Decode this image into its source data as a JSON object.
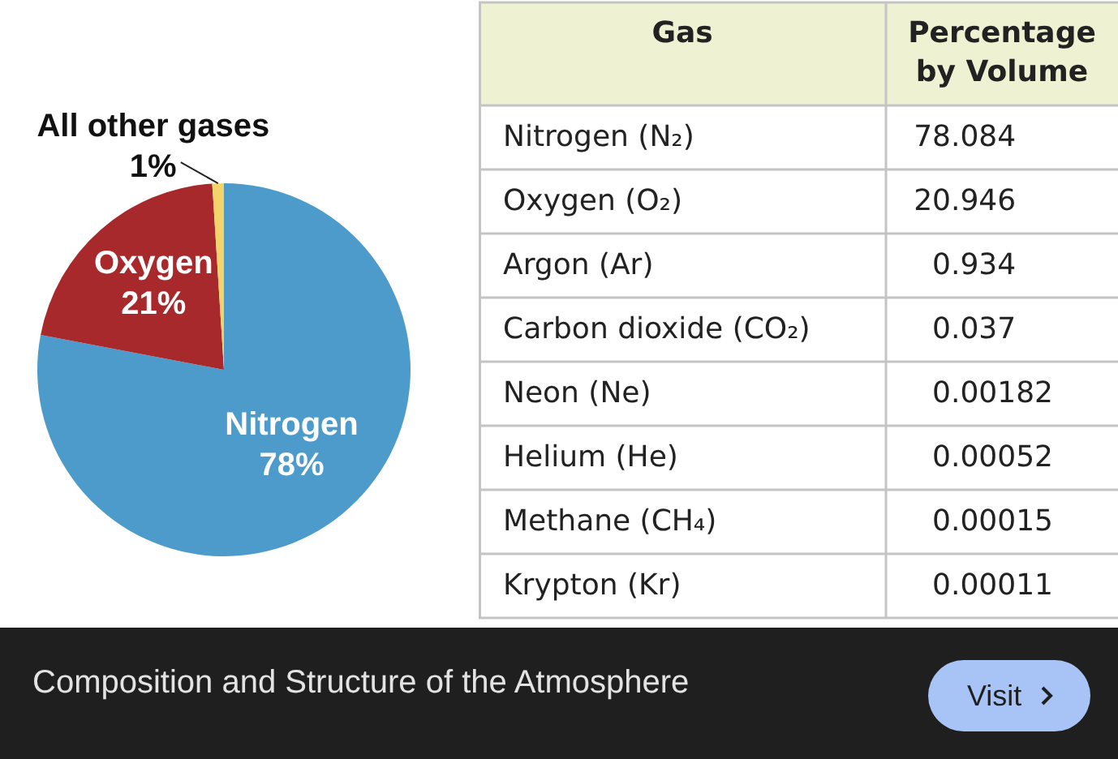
{
  "chart_data": [
    {
      "type": "pie",
      "categories": [
        "Nitrogen",
        "Oxygen",
        "All other gases"
      ],
      "values": [
        78,
        21,
        1
      ],
      "value_labels": [
        "78%",
        "21%",
        "1%"
      ],
      "colors": [
        "#4d9bcb",
        "#a8292c",
        "#f2d46a"
      ],
      "annotations": [
        "Composition and Structure of the Atmosphere",
        "Visit"
      ]
    },
    {
      "type": "other",
      "xlabel": "Gas",
      "ylabel": "Percentage by Volume",
      "categories": [
        "Nitrogen (N₂)",
        "Oxygen (O₂)",
        "Argon (Ar)",
        "Carbon dioxide (CO₂)",
        "Neon (Ne)",
        "Helium (He)",
        "Methane (CH₄)",
        "Krypton (Kr)"
      ],
      "values": [
        78.084,
        20.946,
        0.934,
        0.037,
        0.00182,
        0.00052,
        0.00015,
        0.00011
      ],
      "data_labels": true
    }
  ]
}
